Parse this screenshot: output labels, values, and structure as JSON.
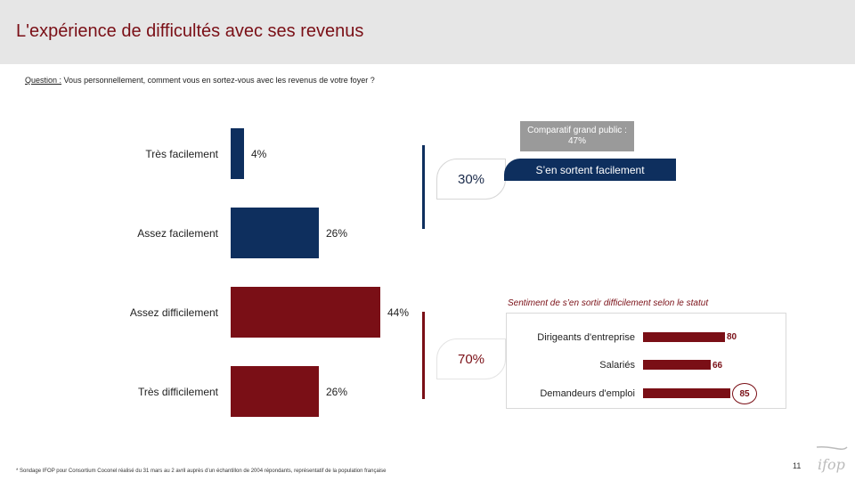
{
  "header": {
    "title": "L'expérience de difficultés avec ses revenus"
  },
  "question": {
    "label": "Question :",
    "text": "Vous personnellement, comment vous en sortez-vous avec les revenus de votre foyer ?"
  },
  "colors": {
    "blue": "#0e2f5e",
    "red": "#7a0f16",
    "grey": "#9a9a9a"
  },
  "chart_data": [
    {
      "type": "bar",
      "orientation": "horizontal",
      "categories": [
        "Très facilement",
        "Assez facilement",
        "Assez difficilement",
        "Très difficilement"
      ],
      "values": [
        4,
        26,
        44,
        26
      ],
      "value_labels": [
        "4%",
        "26%",
        "44%",
        "26%"
      ],
      "colors": [
        "#0e2f5e",
        "#0e2f5e",
        "#7a0f16",
        "#7a0f16"
      ],
      "groups": [
        {
          "label": "30%",
          "categories": [
            "Très facilement",
            "Assez facilement"
          ],
          "color": "#0e2f5e"
        },
        {
          "label": "70%",
          "categories": [
            "Assez difficilement",
            "Très difficilement"
          ],
          "color": "#7a0f16"
        }
      ],
      "xlim": [
        0,
        44
      ]
    },
    {
      "type": "bar",
      "orientation": "horizontal",
      "title": "Sentiment de s’en sortir difficilement selon le statut",
      "categories": [
        "Dirigeants d'entreprise",
        "Salariés",
        "Demandeurs d'emploi"
      ],
      "values": [
        80,
        66,
        85
      ],
      "highlighted": [
        "Demandeurs d'emploi"
      ],
      "xlim": [
        0,
        100
      ]
    }
  ],
  "callouts": {
    "grey": "Comparatif grand public : 47%",
    "blue": "S’en sortent facilement"
  },
  "footnote": "* Sondage IFOP pour Consortium Coconel réalisé du 31 mars au 2 avril auprès d’un échantillon de 2004 répondants, représentatif de la population française",
  "page_number": "11",
  "logo_text": "ifop"
}
